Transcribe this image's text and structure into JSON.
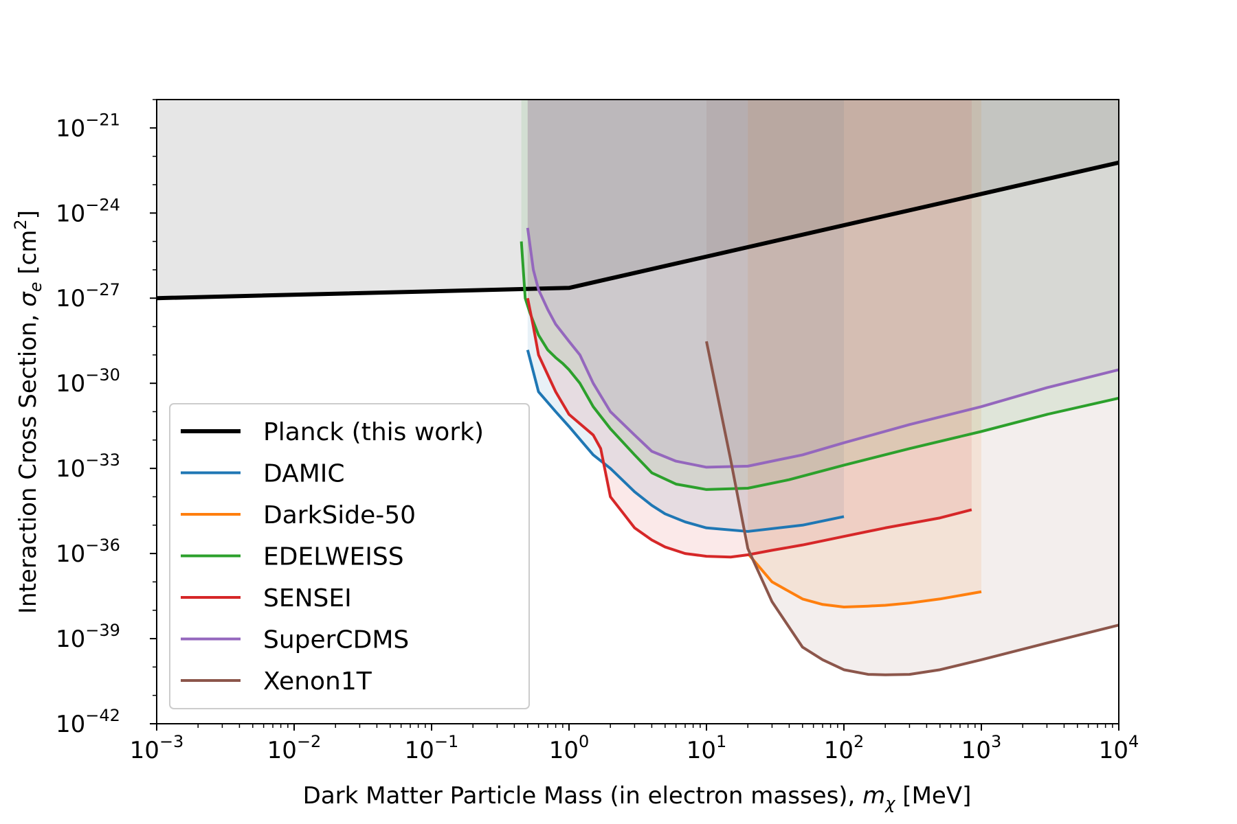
{
  "chart_data": {
    "type": "line",
    "title": "",
    "xlabel": "Dark Matter Particle Mass (in electron masses), ",
    "xlabel_symbol": "m",
    "xlabel_sub": "χ",
    "xlabel_unit": " [MeV]",
    "ylabel": "Interaction Cross Section, ",
    "ylabel_symbol": "σ",
    "ylabel_sub": "e",
    "ylabel_unit_open": " [cm",
    "ylabel_unit_sup": "2",
    "ylabel_unit_close": "]",
    "x_scale": "log",
    "y_scale": "log",
    "xlim": [
      0.001,
      10000
    ],
    "ylim": [
      1e-42,
      1e-20
    ],
    "x_ticks": [
      {
        "value": 0.001,
        "base": "10",
        "exp": "−3"
      },
      {
        "value": 0.01,
        "base": "10",
        "exp": "−2"
      },
      {
        "value": 0.1,
        "base": "10",
        "exp": "−1"
      },
      {
        "value": 1,
        "base": "10",
        "exp": "0"
      },
      {
        "value": 10,
        "base": "10",
        "exp": "1"
      },
      {
        "value": 100,
        "base": "10",
        "exp": "2"
      },
      {
        "value": 1000,
        "base": "10",
        "exp": "3"
      },
      {
        "value": 10000,
        "base": "10",
        "exp": "4"
      }
    ],
    "y_ticks": [
      {
        "value": 1e-21,
        "base": "10",
        "exp": "−21"
      },
      {
        "value": 1e-24,
        "base": "10",
        "exp": "−24"
      },
      {
        "value": 1e-27,
        "base": "10",
        "exp": "−27"
      },
      {
        "value": 1e-30,
        "base": "10",
        "exp": "−30"
      },
      {
        "value": 1e-33,
        "base": "10",
        "exp": "−33"
      },
      {
        "value": 1e-36,
        "base": "10",
        "exp": "−36"
      },
      {
        "value": 1e-39,
        "base": "10",
        "exp": "−39"
      },
      {
        "value": 1e-42,
        "base": "10",
        "exp": "−42"
      }
    ],
    "grid": false,
    "legend_position": "lower-left",
    "series": [
      {
        "name": "Planck (this work)",
        "color": "#000000",
        "fill": "#808080",
        "fill_alpha": 0.2,
        "fill_to": "top",
        "x": [
          0.001,
          1,
          10000
        ],
        "y": [
          1e-27,
          2.3e-27,
          6e-23
        ]
      },
      {
        "name": "DAMIC",
        "color": "#1f77b4",
        "fill": "#1f77b4",
        "fill_alpha": 0.1,
        "fill_to": "top",
        "x": [
          0.5,
          0.6,
          0.8,
          1,
          1.5,
          2,
          3,
          4,
          5,
          7,
          10,
          20,
          50,
          100
        ],
        "y": [
          1.5e-29,
          5e-31,
          1e-31,
          3e-32,
          3e-33,
          1e-33,
          1.5e-34,
          5e-35,
          2.5e-35,
          1.3e-35,
          8e-36,
          6e-36,
          1e-35,
          2e-35
        ]
      },
      {
        "name": "DarkSide-50",
        "color": "#ff7f0e",
        "fill": "#ff7f0e",
        "fill_alpha": 0.1,
        "fill_to": "top",
        "x": [
          20,
          30,
          50,
          70,
          100,
          150,
          200,
          300,
          500,
          1000
        ],
        "y": [
          1e-36,
          1e-37,
          2.5e-38,
          1.6e-38,
          1.3e-38,
          1.4e-38,
          1.5e-38,
          1.8e-38,
          2.5e-38,
          4.5e-38
        ]
      },
      {
        "name": "EDELWEISS",
        "color": "#2ca02c",
        "fill": "#2ca02c",
        "fill_alpha": 0.1,
        "fill_to": "top",
        "x": [
          0.45,
          0.48,
          0.52,
          0.6,
          0.7,
          0.8,
          0.9,
          1,
          1.2,
          1.5,
          2,
          3,
          4,
          6,
          10,
          20,
          40,
          100,
          300,
          1000,
          3000,
          10000
        ],
        "y": [
          1e-25,
          1e-27,
          3e-28,
          5e-29,
          1.5e-29,
          8e-30,
          5e-30,
          3e-30,
          1e-30,
          1.5e-31,
          2.5e-32,
          3e-33,
          7e-34,
          2.8e-34,
          1.8e-34,
          2e-34,
          4e-34,
          1.3e-33,
          5e-33,
          2e-32,
          8e-32,
          3e-31
        ]
      },
      {
        "name": "SENSEI",
        "color": "#d62728",
        "fill": "#d62728",
        "fill_alpha": 0.1,
        "fill_to": "top",
        "x": [
          0.5,
          0.55,
          0.6,
          0.7,
          0.8,
          1,
          1.5,
          1.7,
          2,
          2.5,
          3,
          4,
          5,
          7,
          10,
          15,
          20,
          30,
          50,
          100,
          200,
          500,
          850
        ],
        "y": [
          1e-27,
          1e-28,
          1e-29,
          2e-30,
          5e-31,
          8e-32,
          1.5e-32,
          5e-33,
          1e-34,
          2.5e-35,
          8e-36,
          3e-36,
          1.7e-36,
          1e-36,
          8e-37,
          7.5e-37,
          9e-37,
          1.3e-36,
          2e-36,
          4e-36,
          8e-36,
          1.8e-35,
          3.5e-35
        ]
      },
      {
        "name": "SuperCDMS",
        "color": "#9467bd",
        "fill": "#9467bd",
        "fill_alpha": 0.1,
        "fill_to": "top",
        "x": [
          0.5,
          0.55,
          0.6,
          0.7,
          0.8,
          1,
          1.2,
          1.5,
          2,
          3,
          4,
          6,
          10,
          20,
          50,
          100,
          300,
          1000,
          3000,
          10000
        ],
        "y": [
          3e-25,
          1e-26,
          2e-27,
          4e-28,
          1.2e-28,
          3e-29,
          1e-29,
          1e-30,
          1e-31,
          1.5e-32,
          4e-33,
          1.8e-33,
          1.1e-33,
          1.2e-33,
          3e-33,
          8e-33,
          3.5e-32,
          1.5e-31,
          7e-31,
          3e-30
        ]
      },
      {
        "name": "Xenon1T",
        "color": "#8c564b",
        "fill": "#8c564b",
        "fill_alpha": 0.1,
        "fill_to": "top",
        "x": [
          10,
          15,
          20,
          30,
          50,
          70,
          100,
          150,
          200,
          300,
          500,
          1000,
          3000,
          10000
        ],
        "y": [
          3e-29,
          2e-33,
          1.5e-36,
          2e-38,
          5e-40,
          1.8e-40,
          8e-41,
          5.5e-41,
          5.3e-41,
          5.5e-41,
          8e-41,
          1.8e-40,
          7e-40,
          3e-39
        ]
      }
    ]
  }
}
